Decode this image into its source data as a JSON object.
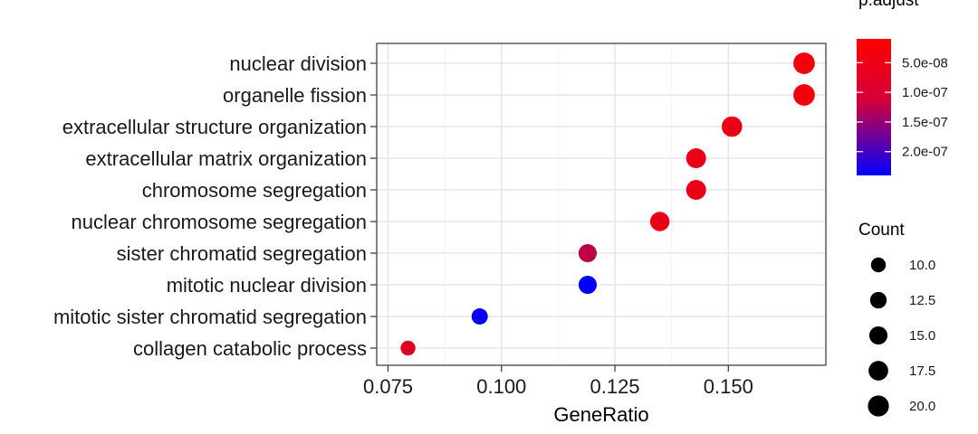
{
  "chart_data": {
    "type": "scatter",
    "xlabel": "GeneRatio",
    "ylabel": "",
    "title": "",
    "xlim": [
      0.0725,
      0.1715
    ],
    "x_ticks": [
      0.075,
      0.1,
      0.125,
      0.15
    ],
    "x_tick_labels": [
      "0.075",
      "0.100",
      "0.125",
      "0.150"
    ],
    "grid": true,
    "categories": [
      "nuclear division",
      "organelle fission",
      "extracellular structure organization",
      "extracellular matrix organization",
      "chromosome segregation",
      "nuclear chromosome segregation",
      "sister chromatid segregation",
      "mitotic nuclear division",
      "mitotic sister chromatid segregation",
      "collagen catabolic process"
    ],
    "points": [
      {
        "category": "nuclear division",
        "x": 0.1667,
        "count": 21,
        "p_adjust": 2e-08
      },
      {
        "category": "organelle fission",
        "x": 0.1667,
        "count": 21,
        "p_adjust": 2e-08
      },
      {
        "category": "extracellular structure organization",
        "x": 0.1508,
        "count": 19,
        "p_adjust": 3e-08
      },
      {
        "category": "extracellular matrix organization",
        "x": 0.1429,
        "count": 18,
        "p_adjust": 3e-08
      },
      {
        "category": "chromosome segregation",
        "x": 0.1429,
        "count": 18,
        "p_adjust": 3e-08
      },
      {
        "category": "nuclear chromosome segregation",
        "x": 0.1349,
        "count": 17,
        "p_adjust": 3e-08
      },
      {
        "category": "sister chromatid segregation",
        "x": 0.119,
        "count": 15,
        "p_adjust": 7e-08
      },
      {
        "category": "mitotic nuclear division",
        "x": 0.119,
        "count": 15,
        "p_adjust": 2.4e-07
      },
      {
        "category": "mitotic sister chromatid segregation",
        "x": 0.0952,
        "count": 12,
        "p_adjust": 2.3e-07
      },
      {
        "category": "collagen catabolic process",
        "x": 0.0794,
        "count": 10,
        "p_adjust": 4e-08
      }
    ],
    "color_legend": {
      "title": "p.adjust",
      "range": [
        1e-08,
        2.4e-07
      ],
      "ticks": [
        5e-08,
        1e-07,
        1.5e-07,
        2e-07
      ],
      "tick_labels": [
        "5.0e-08",
        "1.0e-07",
        "1.5e-07",
        "2.0e-07"
      ],
      "low_color": "#ff0000",
      "high_color": "#0000ff"
    },
    "size_legend": {
      "title": "Count",
      "values": [
        10,
        12.5,
        15,
        17.5,
        20
      ],
      "labels": [
        "10.0",
        "12.5",
        "15.0",
        "17.5",
        "20.0"
      ]
    },
    "legend_placement": "right"
  }
}
